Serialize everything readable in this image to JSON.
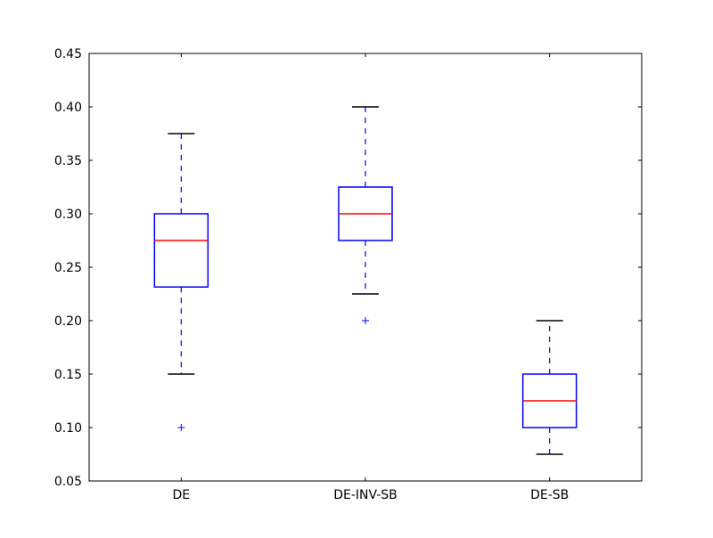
{
  "chart_data": {
    "type": "box",
    "categories": [
      "DE",
      "DE-INV-SB",
      "DE-SB"
    ],
    "boxes": [
      {
        "whisker_low": 0.15,
        "q1": 0.2315,
        "median": 0.275,
        "q3": 0.3,
        "whisker_high": 0.375,
        "outliers": [
          0.1
        ]
      },
      {
        "whisker_low": 0.225,
        "q1": 0.275,
        "median": 0.3,
        "q3": 0.325,
        "whisker_high": 0.4,
        "outliers": [
          0.2
        ]
      },
      {
        "whisker_low": 0.075,
        "q1": 0.1,
        "median": 0.125,
        "q3": 0.15,
        "whisker_high": 0.2,
        "outliers": []
      }
    ],
    "title": "",
    "xlabel": "",
    "ylabel": "",
    "ylim": [
      0.05,
      0.45
    ],
    "yticks": [
      "0.05",
      "0.10",
      "0.15",
      "0.20",
      "0.25",
      "0.30",
      "0.35",
      "0.40",
      "0.45"
    ],
    "grid": false,
    "colors": {
      "box": "#0000ff",
      "median": "#ff0000",
      "whisker": "#0000ff",
      "cap": "#000000",
      "outlier": "#0000ff",
      "axes": "#000000"
    }
  }
}
